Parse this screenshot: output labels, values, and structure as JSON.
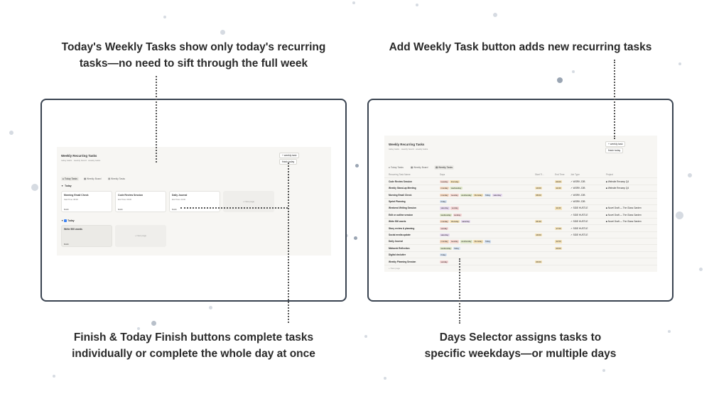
{
  "captions": {
    "top_left": [
      "Today's Weekly Tasks show only today's recurring",
      "tasks—no need to sift through the full week"
    ],
    "top_right": [
      "Add Weekly Task button adds new recurring tasks"
    ],
    "bottom_left": [
      "Finish & Today Finish buttons complete tasks",
      "individually or complete the whole day at once"
    ],
    "bottom_right": [
      "Days Selector assigns tasks to",
      "specific weekdays—or multiple days"
    ]
  },
  "colors": {
    "frame_border": "#394350",
    "panel_bg": "#f7f6f3",
    "dot": "#d6dbe2"
  },
  "left_screen": {
    "title": "Weekly Recurring Tasks",
    "subtitle": "today tasks · weekly board · weekly tasks",
    "btn_weekly_task": "+ weekly task",
    "btn_finish_today": "finish today",
    "tabs": [
      "Today Tasks",
      "Weekly Board",
      "Weekly Tasks"
    ],
    "group_today_1": "Today",
    "cards": [
      {
        "title": "Morning Email Check",
        "meta": "Start Time: 08:00",
        "button": "finish"
      },
      {
        "title": "Code Review Session",
        "meta": "End Time: 09:00",
        "button": "finish"
      },
      {
        "title": "Daily Journal",
        "meta": "End Time: 22:00",
        "button": "finish"
      }
    ],
    "new_page": "+ New page",
    "group_today_2": "Today",
    "card_done": {
      "title": "Write 500 words",
      "button": "finish"
    },
    "new_page_2": "+ New page"
  },
  "right_screen": {
    "title": "Weekly Recurring Tasks",
    "subtitle": "today tasks · weekly board · weekly tasks",
    "btn_weekly_task": "+ weekly task",
    "btn_finish_today": "finish today",
    "tabs": [
      "Today Tasks",
      "Weekly Board",
      "Weekly Tasks"
    ],
    "columns": [
      "Recurring Task Name",
      "Days",
      "Start Ti...",
      "End Time",
      "Job Type",
      "Project"
    ],
    "rows": [
      {
        "name": "Code Review Session",
        "days": [
          "tuesday",
          "thursday"
        ],
        "start": "",
        "end": "09:00",
        "job": "WORK JOB",
        "project": "Website Revamp Q4"
      },
      {
        "name": "Weekly Stand-up Meeting",
        "days": [
          "monday",
          "wednesday"
        ],
        "start": "10:00",
        "end": "11:00",
        "job": "WORK JOB",
        "project": "Website Revamp Q4"
      },
      {
        "name": "Morning Email Check",
        "days": [
          "monday",
          "tuesday",
          "wednesday",
          "thursday",
          "friday",
          "saturday"
        ],
        "start": "08:00",
        "end": "",
        "job": "WORK JOB",
        "project": ""
      },
      {
        "name": "Sprint Planning",
        "days": [
          "friday"
        ],
        "start": "",
        "end": "",
        "job": "WORK JOB",
        "project": ""
      },
      {
        "name": "Weekend Writing Session",
        "days": [
          "saturday",
          "sunday"
        ],
        "start": "",
        "end": "11:00",
        "job": "SIDE HUSTLE",
        "project": "Novel Draft — The Glass Garden"
      },
      {
        "name": "Edit or outline session",
        "days": [
          "wednesday",
          "sunday"
        ],
        "start": "",
        "end": "",
        "job": "SIDE HUSTLE",
        "project": "Novel Draft — The Glass Garden"
      },
      {
        "name": "Write 500 words",
        "days": [
          "monday",
          "thursday",
          "saturday"
        ],
        "start": "06:30",
        "end": "",
        "job": "SIDE HUSTLE",
        "project": "Novel Draft — The Glass Garden"
      },
      {
        "name": "Story review & planning",
        "days": [
          "sunday"
        ],
        "start": "",
        "end": "17:00",
        "job": "SIDE HUSTLE",
        "project": ""
      },
      {
        "name": "Social media update",
        "days": [
          "saturday"
        ],
        "start": "19:00",
        "end": "",
        "job": "SIDE HUSTLE",
        "project": ""
      },
      {
        "name": "Daily Journal",
        "days": [
          "monday",
          "tuesday",
          "wednesday",
          "thursday",
          "friday"
        ],
        "start": "",
        "end": "22:00",
        "job": "",
        "project": ""
      },
      {
        "name": "Midweek Reflection",
        "days": [
          "wednesday",
          "friday"
        ],
        "start": "",
        "end": "20:00",
        "job": "",
        "project": ""
      },
      {
        "name": "Digital declutter",
        "days": [
          "friday"
        ],
        "start": "",
        "end": "",
        "job": "",
        "project": ""
      },
      {
        "name": "Weekly Planning Session",
        "days": [
          "sunday"
        ],
        "start": "09:00",
        "end": "",
        "job": "",
        "project": ""
      }
    ],
    "new_page": "+ New page"
  }
}
